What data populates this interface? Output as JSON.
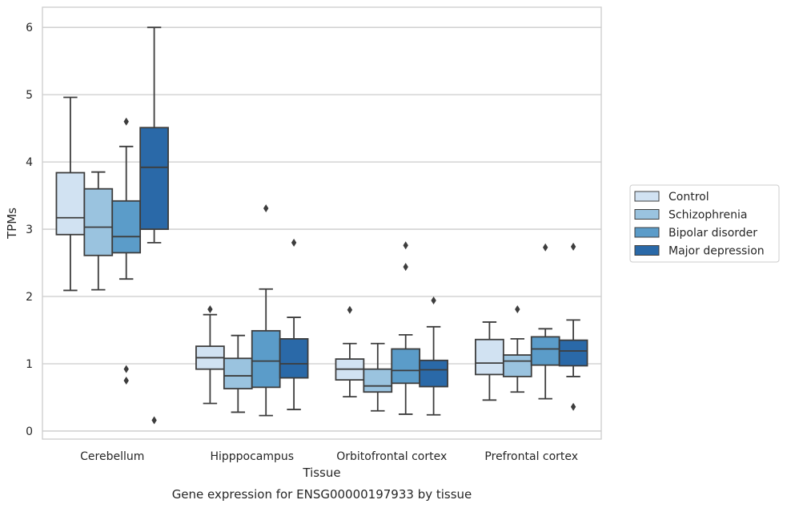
{
  "chart_data": {
    "type": "box",
    "xlabel": "Tissue",
    "ylabel": "TPMs",
    "caption": "Gene expression for ENSG00000197933 by tissue",
    "categories": [
      "Cerebellum",
      "Hipppocampus",
      "Orbitofrontal cortex",
      "Prefrontal cortex"
    ],
    "ylim": [
      -0.12,
      6.3
    ],
    "yticks": [
      "0",
      "1",
      "2",
      "3",
      "4",
      "5",
      "6"
    ],
    "grid": "horizontal",
    "legend_position": "center-right",
    "series": [
      {
        "name": "Control",
        "color": "#d1e2f2",
        "boxes": [
          {
            "whislo": 2.09,
            "q1": 2.92,
            "med": 3.17,
            "q3": 3.84,
            "whishi": 4.96,
            "fliers": []
          },
          {
            "whislo": 0.41,
            "q1": 0.92,
            "med": 1.09,
            "q3": 1.26,
            "whishi": 1.73,
            "fliers": [
              1.81
            ]
          },
          {
            "whislo": 0.51,
            "q1": 0.76,
            "med": 0.92,
            "q3": 1.07,
            "whishi": 1.3,
            "fliers": [
              1.8
            ]
          },
          {
            "whislo": 0.46,
            "q1": 0.84,
            "med": 1.01,
            "q3": 1.36,
            "whishi": 1.62,
            "fliers": []
          }
        ]
      },
      {
        "name": "Schizophrenia",
        "color": "#9ac3df",
        "boxes": [
          {
            "whislo": 2.1,
            "q1": 2.61,
            "med": 3.03,
            "q3": 3.6,
            "whishi": 3.85,
            "fliers": []
          },
          {
            "whislo": 0.28,
            "q1": 0.63,
            "med": 0.82,
            "q3": 1.08,
            "whishi": 1.42,
            "fliers": []
          },
          {
            "whislo": 0.3,
            "q1": 0.58,
            "med": 0.67,
            "q3": 0.92,
            "whishi": 1.3,
            "fliers": []
          },
          {
            "whislo": 0.58,
            "q1": 0.81,
            "med": 1.04,
            "q3": 1.13,
            "whishi": 1.37,
            "fliers": [
              1.81
            ]
          }
        ]
      },
      {
        "name": "Bipolar disorder",
        "color": "#5b9cc9",
        "boxes": [
          {
            "whislo": 2.26,
            "q1": 2.65,
            "med": 2.89,
            "q3": 3.42,
            "whishi": 4.23,
            "fliers": [
              4.6,
              0.92,
              0.75
            ]
          },
          {
            "whislo": 0.23,
            "q1": 0.65,
            "med": 1.04,
            "q3": 1.49,
            "whishi": 2.11,
            "fliers": [
              3.31
            ]
          },
          {
            "whislo": 0.25,
            "q1": 0.71,
            "med": 0.9,
            "q3": 1.22,
            "whishi": 1.43,
            "fliers": [
              2.76,
              2.44
            ]
          },
          {
            "whislo": 0.48,
            "q1": 0.98,
            "med": 1.22,
            "q3": 1.4,
            "whishi": 1.52,
            "fliers": [
              2.73
            ]
          }
        ]
      },
      {
        "name": "Major depression",
        "color": "#2a69a8",
        "boxes": [
          {
            "whislo": 2.8,
            "q1": 3.0,
            "med": 3.92,
            "q3": 4.51,
            "whishi": 6.0,
            "fliers": [
              0.16
            ]
          },
          {
            "whislo": 0.32,
            "q1": 0.79,
            "med": 1.0,
            "q3": 1.37,
            "whishi": 1.69,
            "fliers": [
              2.8
            ]
          },
          {
            "whislo": 0.24,
            "q1": 0.66,
            "med": 0.91,
            "q3": 1.05,
            "whishi": 1.55,
            "fliers": [
              1.94
            ]
          },
          {
            "whislo": 0.81,
            "q1": 0.97,
            "med": 1.19,
            "q3": 1.35,
            "whishi": 1.65,
            "fliers": [
              2.74,
              0.36
            ]
          }
        ]
      }
    ]
  }
}
